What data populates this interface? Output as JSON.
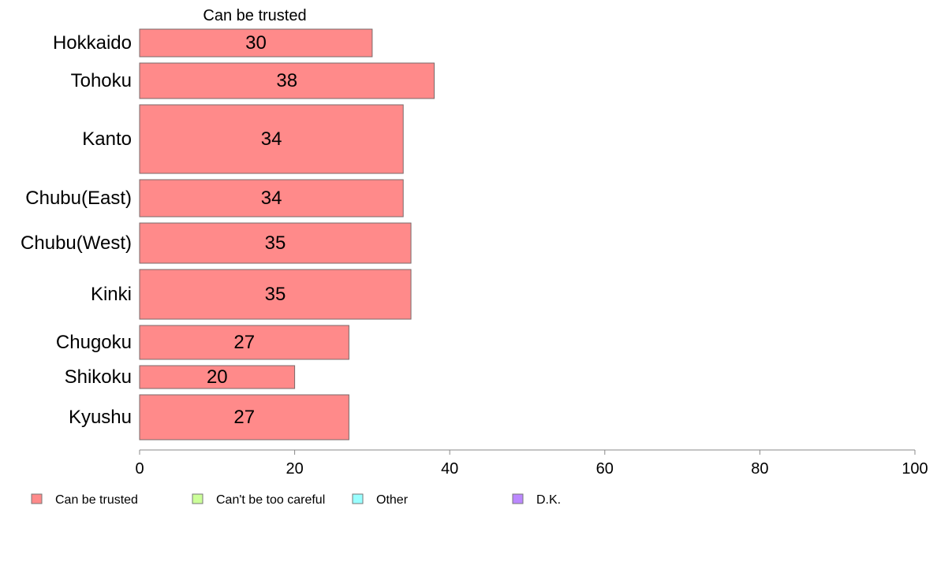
{
  "chart_data": {
    "type": "bar",
    "orientation": "horizontal",
    "categories": [
      "Hokkaido",
      "Tohoku",
      "Kanto",
      "Chubu(East)",
      "Chubu(West)",
      "Kinki",
      "Chugoku",
      "Shikoku",
      "Kyushu"
    ],
    "series": [
      {
        "name": "Can be trusted",
        "values": [
          30,
          38,
          34,
          34,
          35,
          35,
          27,
          20,
          27
        ],
        "color": "#ff8a8a"
      }
    ],
    "series_title": "Can be trusted",
    "xlim": [
      0,
      100
    ],
    "xticks": [
      "0",
      "20",
      "40",
      "60",
      "80",
      "100"
    ],
    "grid": false,
    "legend": {
      "placement": "bottom-left",
      "items": [
        {
          "label": "Can be trusted",
          "color": "#ff8a8a"
        },
        {
          "label": "Can't be too careful",
          "color": "#ccff99"
        },
        {
          "label": "Other",
          "color": "#99ffff"
        },
        {
          "label": "D.K.",
          "color": "#bb88ff"
        }
      ]
    }
  }
}
